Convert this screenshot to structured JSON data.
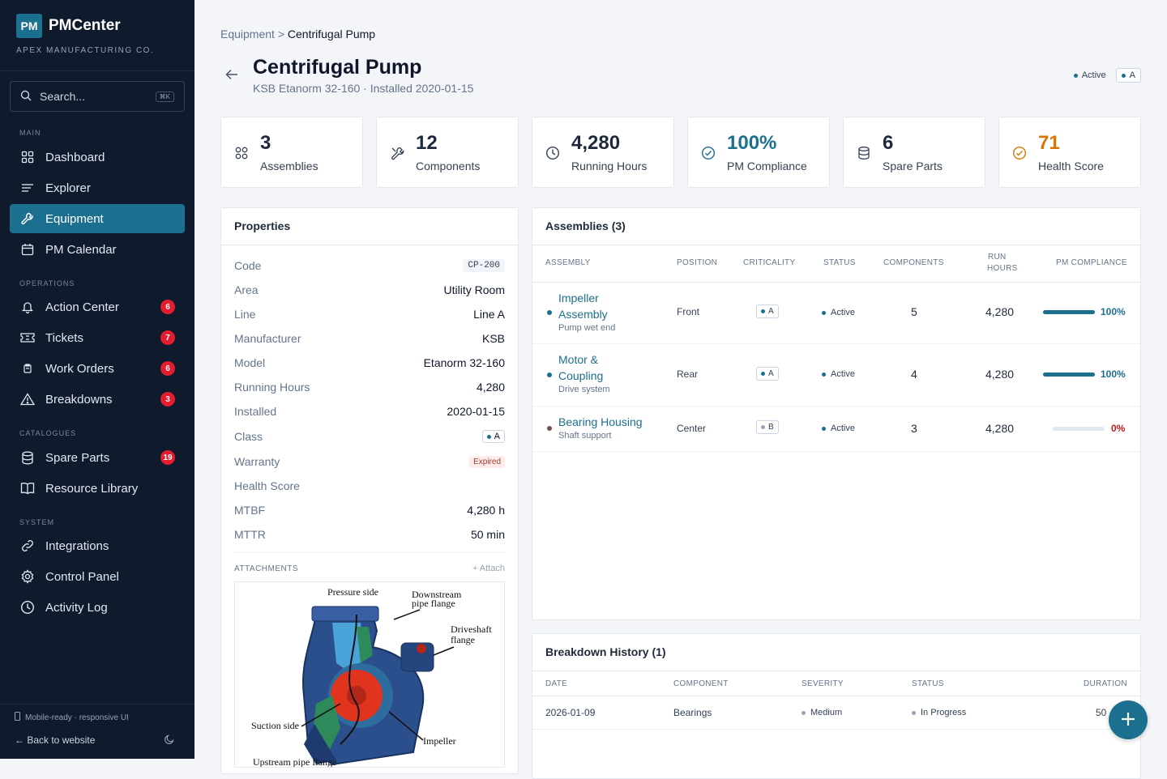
{
  "brand": {
    "logo": "PM",
    "name": "PMCenter",
    "company": "APEX MANUFACTURING CO."
  },
  "search": {
    "placeholder": "Search...",
    "shortcut": "⌘K"
  },
  "sections": {
    "main": "MAIN",
    "operations": "OPERATIONS",
    "catalogues": "CATALOGUES",
    "system": "SYSTEM"
  },
  "nav": {
    "dashboard": "Dashboard",
    "explorer": "Explorer",
    "equipment": "Equipment",
    "pm_calendar": "PM Calendar",
    "action_center": "Action Center",
    "action_center_count": "6",
    "tickets": "Tickets",
    "tickets_count": "7",
    "work_orders": "Work Orders",
    "work_orders_count": "6",
    "breakdowns": "Breakdowns",
    "breakdowns_count": "3",
    "spare_parts": "Spare Parts",
    "spare_parts_count": "19",
    "resource_library": "Resource Library",
    "integrations": "Integrations",
    "control_panel": "Control Panel",
    "activity_log": "Activity Log"
  },
  "footer": {
    "mobile_note": "Mobile-ready · responsive UI",
    "back": "← Back to website"
  },
  "breadcrumb": {
    "parent": "Equipment",
    "sep": ">",
    "current": "Centrifugal Pump"
  },
  "header": {
    "title": "Centrifugal Pump",
    "subtitle": "KSB Etanorm 32-160 · Installed 2020-01-15",
    "status": "Active",
    "class": "A"
  },
  "kpis": [
    {
      "value": "3",
      "label": "Assemblies",
      "icon": "grid-icon"
    },
    {
      "value": "12",
      "label": "Components",
      "icon": "wrench-icon"
    },
    {
      "value": "4,280",
      "label": "Running Hours",
      "icon": "clock-icon"
    },
    {
      "value": "100%",
      "label": "PM Compliance",
      "icon": "check-circle-icon",
      "color": "#1b6f8f"
    },
    {
      "value": "6",
      "label": "Spare Parts",
      "icon": "database-icon"
    },
    {
      "value": "71",
      "label": "Health Score",
      "icon": "check-circle-icon",
      "color": "#d97706"
    }
  ],
  "properties": {
    "title": "Properties",
    "rows": [
      {
        "k": "Code",
        "v": "CP-200"
      },
      {
        "k": "Area",
        "v": "Utility Room"
      },
      {
        "k": "Line",
        "v": "Line A"
      },
      {
        "k": "Manufacturer",
        "v": "KSB"
      },
      {
        "k": "Model",
        "v": "Etanorm 32-160"
      },
      {
        "k": "Running Hours",
        "v": "4,280"
      },
      {
        "k": "Installed",
        "v": "2020-01-15"
      },
      {
        "k": "Class",
        "v": "A"
      },
      {
        "k": "Warranty",
        "v": "Expired"
      },
      {
        "k": "Health Score",
        "v": ""
      },
      {
        "k": "MTBF",
        "v": "4,280 h"
      },
      {
        "k": "MTTR",
        "v": "50 min"
      }
    ],
    "attachments_label": "ATTACHMENTS",
    "attach": "+ Attach",
    "diagram": {
      "pressure": "Pressure side",
      "downstream1": "Downstream",
      "downstream2": "pipe flange",
      "driveshaft1": "Driveshaft",
      "driveshaft2": "flange",
      "suction": "Suction side",
      "impeller": "Impeller",
      "partial": "Upstream pipe flange"
    }
  },
  "assemblies": {
    "title": "Assemblies (3)",
    "headers": [
      "ASSEMBLY",
      "POSITION",
      "CRITICALITY",
      "STATUS",
      "COMPONENTS",
      "RUN",
      "HOURS",
      "PM COMPLIANCE"
    ],
    "rows": [
      {
        "name1": "Impeller",
        "name2": "Assembly",
        "sub": "Pump wet end",
        "position": "Front",
        "crit": "A",
        "status": "Active",
        "components": "5",
        "hours": "4,280",
        "pm": "100%",
        "pm_value": 1.0
      },
      {
        "name1": "Motor &",
        "name2": "Coupling",
        "sub": "Drive system",
        "position": "Rear",
        "crit": "A",
        "status": "Active",
        "components": "4",
        "hours": "4,280",
        "pm": "100%",
        "pm_value": 1.0
      },
      {
        "name1": "Bearing Housing",
        "name2": "",
        "sub": "Shaft support",
        "position": "Center",
        "crit": "B",
        "status": "Active",
        "components": "3",
        "hours": "4,280",
        "pm": "0%",
        "pm_value": 0.0
      }
    ]
  },
  "breakdowns": {
    "title": "Breakdown History (1)",
    "headers": [
      "DATE",
      "COMPONENT",
      "SEVERITY",
      "STATUS",
      "DURATION"
    ],
    "rows": [
      {
        "date": "2026-01-09",
        "component": "Bearings",
        "severity": "Medium",
        "status": "In Progress",
        "duration": "50"
      }
    ]
  },
  "colors": {
    "accent": "#1b6f8f",
    "sidebar": "#0f1b2d",
    "badge": "#e11d2e",
    "warning": "#d97706",
    "danger": "#b91c1c"
  }
}
